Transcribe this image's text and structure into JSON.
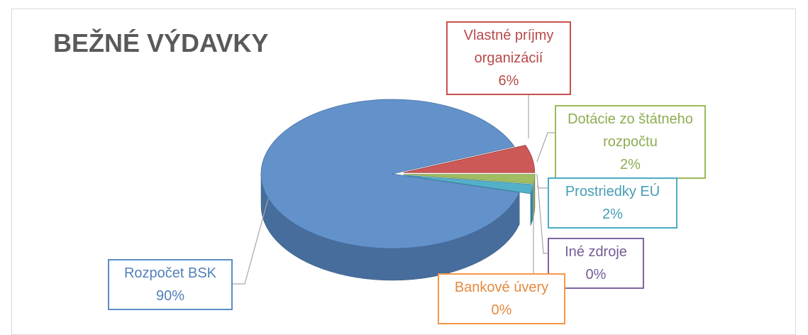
{
  "chart_data": {
    "type": "pie",
    "title": "BEŽNÉ VÝDAVKY",
    "categories": [
      "Rozpočet BSK",
      "Vlastné príjmy organizácií",
      "Dotácie zo štátneho rozpočtu",
      "Prostriedky EÚ",
      "Iné zdroje",
      "Bankové úvery"
    ],
    "values": [
      90,
      6,
      2,
      2,
      0,
      0
    ],
    "value_labels": [
      "90%",
      "6%",
      "2%",
      "2%",
      "0%",
      "0%"
    ],
    "colors": [
      "#5b8cc8",
      "#c9504f",
      "#9bbb59",
      "#4bacc6",
      "#8064a2",
      "#f79646"
    ]
  }
}
